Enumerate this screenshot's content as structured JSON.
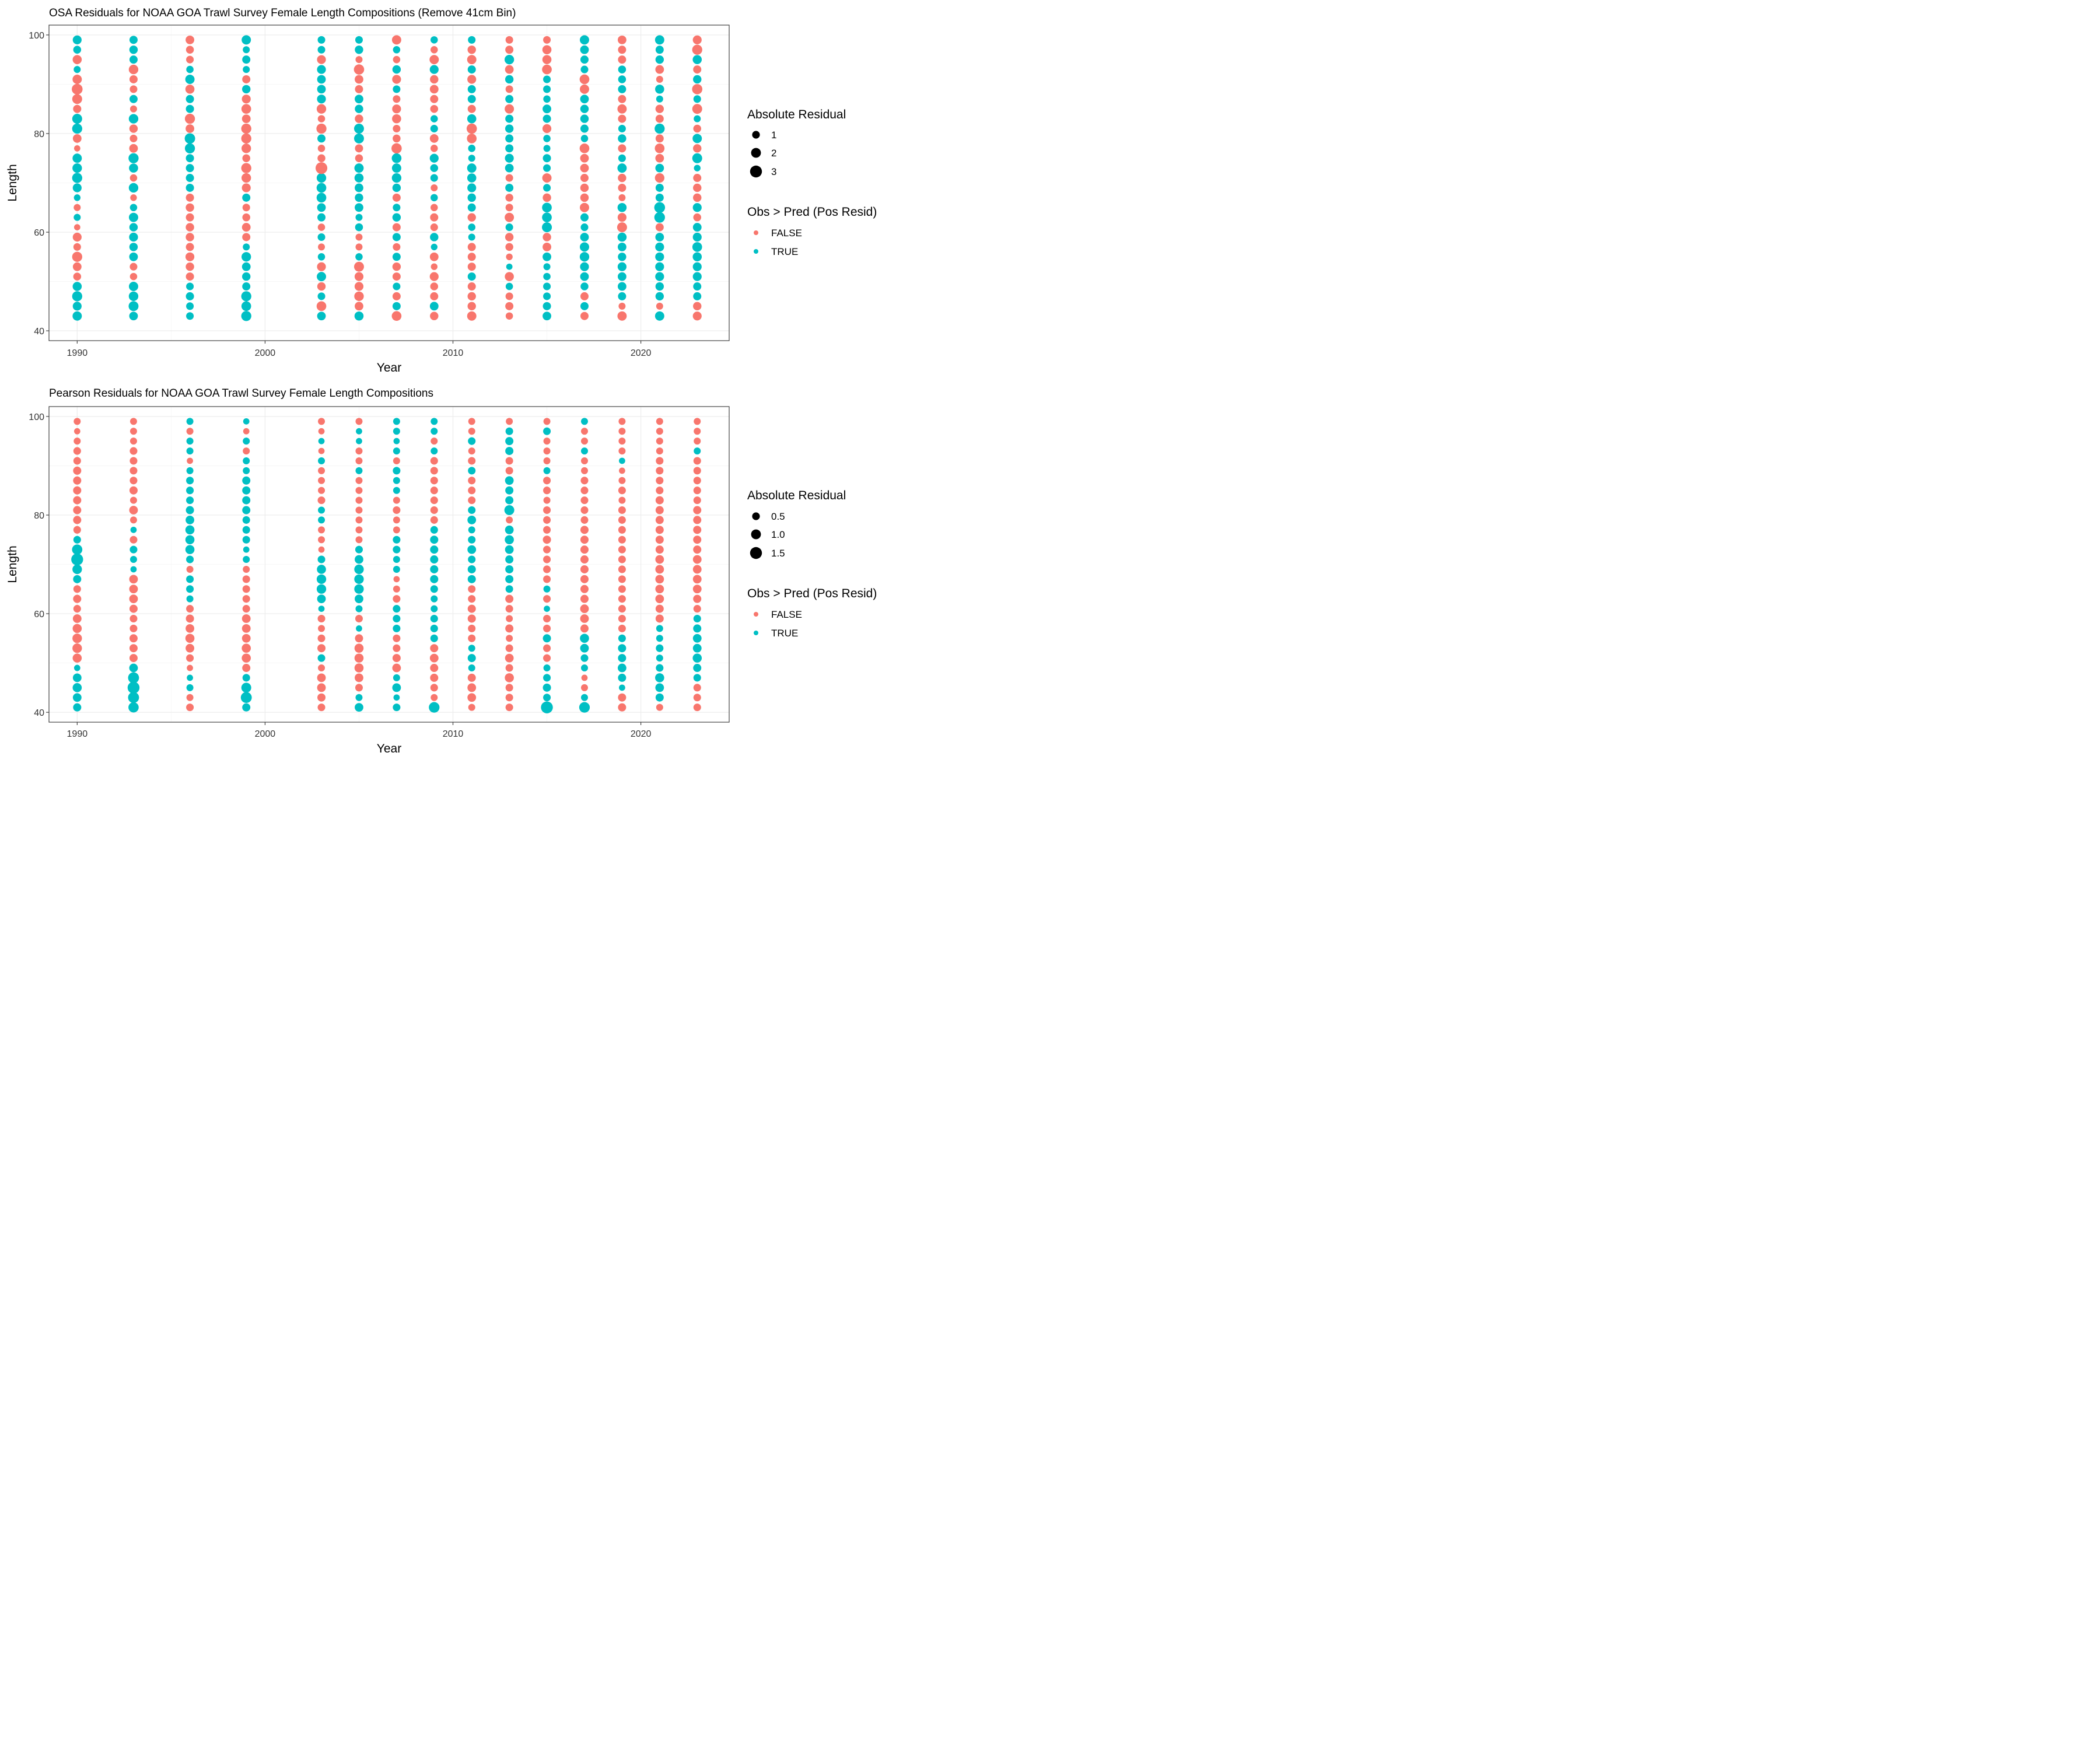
{
  "chart_data": [
    {
      "type": "scatter",
      "title": "OSA Residuals for NOAA GOA Trawl Survey Female Length Compositions (Remove 41cm Bin)",
      "xlabel": "Year",
      "ylabel": "Length",
      "xlim": [
        1988.5,
        2024.7
      ],
      "ylim": [
        38,
        102
      ],
      "x_ticks": [
        1990,
        2000,
        2010,
        2020
      ],
      "y_ticks": [
        40,
        60,
        80,
        100
      ],
      "grid": true,
      "legend_position": "right",
      "size_legend": {
        "title": "Absolute Residual",
        "values": [
          1,
          2,
          3
        ]
      },
      "color_legend": {
        "title": "Obs > Pred (Pos Resid)",
        "labels": [
          "FALSE",
          "TRUE"
        ]
      },
      "colors": {
        "FALSE": "#F8766D",
        "TRUE": "#00BFC4"
      },
      "years": [
        1990,
        1993,
        1996,
        1999,
        2003,
        2005,
        2007,
        2009,
        2011,
        2013,
        2015,
        2017,
        2019,
        2021,
        2023
      ],
      "lengths": [
        43,
        45,
        47,
        49,
        51,
        53,
        55,
        57,
        59,
        61,
        63,
        65,
        67,
        69,
        71,
        73,
        75,
        77,
        79,
        81,
        83,
        85,
        87,
        89,
        91,
        93,
        95,
        97,
        99
      ],
      "residuals": [
        [
          1.5,
          1.3,
          1.9,
          1.4,
          -0.9,
          -1.2,
          -1.9,
          -0.8,
          -1.3,
          -0.4,
          0.6,
          -0.6,
          0.5,
          1.3,
          1.9,
          1.6,
          1.5,
          -0.4,
          -1.2,
          1.9,
          1.8,
          -1.0,
          -1.8,
          -2.3,
          -1.5,
          0.6,
          -1.4,
          0.9,
          1.3
        ],
        [
          1.2,
          1.8,
          1.6,
          1.5,
          -0.7,
          -0.8,
          1.2,
          1.1,
          1.3,
          1.1,
          1.5,
          0.7,
          -0.5,
          1.6,
          -0.7,
          1.4,
          1.9,
          -1.2,
          -0.8,
          -1.1,
          1.6,
          -0.6,
          1.0,
          -0.8,
          -1.0,
          -1.6,
          1.0,
          1.1,
          1.0
        ],
        [
          0.8,
          0.8,
          1.0,
          0.8,
          -1.0,
          -1.1,
          -1.3,
          -1.0,
          -1.1,
          -1.1,
          -1.0,
          -1.1,
          -1.0,
          1.0,
          1.0,
          1.0,
          1.0,
          1.9,
          2.1,
          -1.2,
          -1.9,
          1.0,
          1.0,
          -1.4,
          1.5,
          0.7,
          -0.8,
          -0.9,
          -1.2
        ],
        [
          1.9,
          1.7,
          1.9,
          1.0,
          1.1,
          1.2,
          1.6,
          0.6,
          -1.0,
          -1.2,
          -0.9,
          -0.8,
          1.0,
          -1.3,
          -1.6,
          -1.9,
          -0.9,
          -1.6,
          -1.9,
          -1.9,
          -1.2,
          -1.7,
          -1.3,
          1.1,
          -1.0,
          0.6,
          1.0,
          0.6,
          1.5
        ],
        [
          1.2,
          -1.7,
          0.8,
          -1.1,
          1.5,
          -1.3,
          0.7,
          -0.6,
          0.8,
          -0.7,
          1.0,
          1.2,
          1.7,
          1.7,
          1.6,
          -2.9,
          -0.9,
          -0.7,
          1.0,
          -1.9,
          -0.7,
          -1.6,
          1.3,
          1.2,
          1.2,
          1.3,
          -1.3,
          0.8,
          0.8
        ],
        [
          1.4,
          -1.2,
          -1.6,
          -1.3,
          -1.3,
          -1.8,
          0.7,
          -0.6,
          -0.6,
          0.9,
          0.6,
          1.2,
          1.1,
          1.2,
          1.4,
          1.5,
          -0.9,
          -1.0,
          1.8,
          1.8,
          -1.1,
          1.1,
          1.2,
          -1.0,
          -1.2,
          -2.0,
          -0.6,
          1.1,
          0.8
        ],
        [
          -1.7,
          1.0,
          -1.0,
          0.8,
          -1.0,
          -1.1,
          1.0,
          -0.8,
          1.0,
          -1.0,
          1.1,
          0.8,
          -1.0,
          1.1,
          1.6,
          1.5,
          1.7,
          -2.0,
          -0.9,
          -0.8,
          -1.4,
          -1.3,
          -0.8,
          0.8,
          -1.3,
          1.1,
          -0.7,
          0.7,
          -1.5
        ],
        [
          -1.1,
          1.2,
          -1.0,
          -0.9,
          -1.3,
          -0.5,
          -1.2,
          0.5,
          1.1,
          -0.8,
          -1.0,
          -0.7,
          0.7,
          -0.6,
          0.8,
          0.9,
          1.3,
          -0.7,
          -1.2,
          0.8,
          0.7,
          -0.9,
          -1.0,
          -1.2,
          -1.1,
          1.3,
          -1.5,
          -0.7,
          0.7
        ],
        [
          -1.5,
          -1.1,
          -1.1,
          -1.0,
          1.0,
          -1.0,
          -1.0,
          -1.0,
          0.6,
          0.7,
          -1.1,
          1.0,
          1.1,
          1.3,
          1.4,
          1.5,
          0.6,
          0.7,
          -1.7,
          -2.0,
          1.4,
          -1.0,
          1.0,
          1.0,
          -1.3,
          1.0,
          -1.5,
          -1.1,
          0.8
        ],
        [
          -0.7,
          -1.0,
          -0.8,
          0.7,
          -1.4,
          0.4,
          -0.5,
          -0.9,
          -1.1,
          0.8,
          -1.5,
          -0.8,
          -0.9,
          1.0,
          -0.8,
          1.2,
          1.3,
          1.0,
          1.0,
          1.1,
          1.0,
          -1.5,
          1.0,
          -0.8,
          1.1,
          -1.2,
          1.6,
          -1.0,
          -0.8
        ],
        [
          1.2,
          1.0,
          0.8,
          0.8,
          0.7,
          0.6,
          1.2,
          -1.2,
          -1.1,
          1.8,
          1.7,
          1.7,
          -1.1,
          0.8,
          -1.5,
          0.8,
          1.0,
          0.6,
          0.7,
          -1.3,
          1.0,
          1.2,
          0.7,
          0.8,
          0.8,
          -1.7,
          -1.4,
          -1.4,
          -0.8
        ],
        [
          -1.0,
          1.0,
          -1.0,
          0.9,
          1.2,
          1.3,
          1.6,
          1.5,
          1.2,
          0.8,
          1.0,
          -1.5,
          -1.1,
          -1.1,
          -1.0,
          -1.2,
          -1.2,
          -1.7,
          0.7,
          1.0,
          1.1,
          1.1,
          1.2,
          -1.5,
          -1.7,
          0.8,
          1.0,
          1.2,
          1.5
        ],
        [
          -1.5,
          -0.6,
          1.0,
          1.2,
          1.2,
          1.3,
          1.1,
          1.2,
          1.4,
          -1.8,
          -1.3,
          1.4,
          -0.6,
          -1.0,
          -1.1,
          1.5,
          0.8,
          -1.0,
          1.1,
          0.8,
          -1.0,
          -1.5,
          -1.0,
          1.0,
          0.9,
          0.9,
          -1.0,
          -1.0,
          -1.2
        ],
        [
          1.5,
          -0.6,
          1.1,
          1.1,
          1.3,
          1.3,
          1.3,
          1.3,
          1.2,
          -1.0,
          2.2,
          2.3,
          1.0,
          1.0,
          -1.6,
          1.2,
          -1.2,
          -1.7,
          -1.0,
          1.9,
          -1.0,
          -1.1,
          0.6,
          1.4,
          -0.6,
          -1.2,
          1.1,
          1.0,
          1.5
        ],
        [
          -1.3,
          -1.1,
          1.0,
          1.0,
          1.3,
          1.3,
          1.4,
          1.7,
          1.3,
          1.2,
          -0.9,
          1.3,
          -1.1,
          -1.1,
          -1.0,
          0.5,
          1.8,
          -1.1,
          1.5,
          -0.9,
          0.6,
          -1.8,
          0.8,
          -2.0,
          1.1,
          -1.0,
          1.4,
          -1.9,
          -1.3
        ]
      ]
    },
    {
      "type": "scatter",
      "title": "Pearson Residuals for NOAA GOA Trawl Survey Female Length Compositions",
      "xlabel": "Year",
      "ylabel": "Length",
      "xlim": [
        1988.5,
        2024.7
      ],
      "ylim": [
        38,
        102
      ],
      "x_ticks": [
        1990,
        2000,
        2010,
        2020
      ],
      "y_ticks": [
        40,
        60,
        80,
        100
      ],
      "grid": true,
      "legend_position": "right",
      "size_legend": {
        "title": "Absolute Residual",
        "values": [
          "0.5",
          "1.0",
          "1.5"
        ]
      },
      "color_legend": {
        "title": "Obs > Pred (Pos Resid)",
        "labels": [
          "FALSE",
          "TRUE"
        ]
      },
      "colors": {
        "FALSE": "#F8766D",
        "TRUE": "#00BFC4"
      },
      "years": [
        1990,
        1993,
        1996,
        1999,
        2003,
        2005,
        2007,
        2009,
        2011,
        2013,
        2015,
        2017,
        2019,
        2021,
        2023
      ],
      "lengths": [
        41,
        43,
        45,
        47,
        49,
        51,
        53,
        55,
        57,
        59,
        61,
        63,
        65,
        67,
        69,
        71,
        73,
        75,
        77,
        79,
        81,
        83,
        85,
        87,
        89,
        91,
        93,
        95,
        97,
        99
      ],
      "residuals": [
        [
          0.5,
          0.6,
          0.7,
          0.6,
          0.2,
          -0.7,
          -0.8,
          -0.8,
          -0.7,
          -0.6,
          -0.4,
          -0.5,
          -0.4,
          0.5,
          0.8,
          1.5,
          1.0,
          0.4,
          -0.4,
          -0.5,
          -0.5,
          -0.5,
          -0.5,
          -0.5,
          -0.5,
          -0.4,
          -0.4,
          -0.3,
          -0.2,
          -0.3
        ],
        [
          1.0,
          1.2,
          1.6,
          1.2,
          0.6,
          -0.5,
          -0.5,
          -0.5,
          -0.4,
          -0.4,
          -0.5,
          -0.6,
          -0.6,
          -0.6,
          0.2,
          0.3,
          0.4,
          -0.4,
          0.2,
          -0.3,
          -0.6,
          -0.3,
          -0.5,
          -0.4,
          -0.4,
          -0.4,
          -0.4,
          -0.3,
          -0.3,
          -0.3
        ],
        [
          -0.4,
          -0.3,
          0.3,
          0.2,
          -0.2,
          -0.4,
          -0.6,
          -0.7,
          -0.6,
          -0.5,
          -0.4,
          0.3,
          0.4,
          0.4,
          -0.3,
          0.4,
          0.7,
          0.7,
          0.7,
          0.6,
          0.5,
          0.4,
          0.4,
          0.4,
          0.3,
          -0.2,
          0.3,
          0.3,
          -0.3,
          0.3
        ],
        [
          0.5,
          1.2,
          0.9,
          0.4,
          -0.5,
          -0.7,
          -0.7,
          -0.6,
          -0.6,
          -0.6,
          -0.4,
          -0.4,
          -0.4,
          -0.4,
          -0.3,
          0.3,
          0.2,
          0.4,
          0.4,
          0.4,
          0.5,
          0.5,
          0.5,
          0.5,
          0.3,
          0.3,
          -0.3,
          0.3,
          -0.2,
          0.2
        ],
        [
          -0.4,
          -0.5,
          -0.6,
          -0.6,
          -0.3,
          0.4,
          -0.5,
          -0.4,
          -0.3,
          -0.4,
          0.2,
          0.6,
          0.8,
          0.8,
          0.7,
          0.4,
          -0.2,
          -0.3,
          -0.3,
          0.3,
          0.3,
          -0.4,
          -0.3,
          -0.3,
          -0.3,
          0.3,
          -0.2,
          0.2,
          -0.2,
          -0.3
        ],
        [
          0.6,
          0.3,
          -0.4,
          -0.6,
          -0.7,
          -0.7,
          -0.7,
          -0.5,
          0.2,
          -0.4,
          0.3,
          0.6,
          0.8,
          0.8,
          0.8,
          0.6,
          0.4,
          -0.3,
          -0.3,
          -0.3,
          -0.3,
          -0.3,
          -0.3,
          -0.3,
          0.3,
          -0.3,
          -0.3,
          0.2,
          0.2,
          -0.3
        ],
        [
          0.4,
          0.2,
          0.6,
          0.3,
          -0.6,
          -0.5,
          -0.4,
          -0.4,
          0.4,
          0.4,
          0.4,
          -0.4,
          -0.3,
          -0.2,
          0.3,
          0.3,
          0.4,
          0.4,
          -0.3,
          -0.3,
          -0.4,
          -0.3,
          0.3,
          0.3,
          0.4,
          -0.3,
          0.3,
          0.2,
          0.3,
          0.3
        ],
        [
          1.1,
          -0.3,
          -0.4,
          -0.5,
          -0.5,
          -0.6,
          -0.5,
          0.4,
          0.4,
          0.4,
          0.3,
          0.3,
          0.4,
          0.5,
          0.5,
          0.5,
          0.5,
          0.5,
          0.4,
          -0.4,
          -0.4,
          -0.4,
          -0.4,
          -0.4,
          -0.4,
          -0.4,
          0.3,
          -0.3,
          0.3,
          0.3
        ],
        [
          -0.3,
          -0.6,
          -0.6,
          -0.5,
          0.3,
          0.5,
          0.3,
          -0.4,
          -0.4,
          -0.5,
          -0.5,
          -0.4,
          -0.4,
          0.5,
          0.5,
          0.4,
          0.6,
          0.4,
          0.3,
          0.6,
          0.4,
          -0.4,
          -0.4,
          -0.4,
          0.4,
          -0.4,
          -0.3,
          0.4,
          -0.3,
          -0.3
        ],
        [
          -0.4,
          -0.4,
          -0.4,
          -0.7,
          -0.4,
          -0.6,
          -0.4,
          -0.3,
          -0.5,
          -0.3,
          -0.4,
          -0.5,
          0.4,
          0.5,
          0.5,
          0.5,
          0.6,
          0.7,
          0.6,
          -0.3,
          0.9,
          0.5,
          0.5,
          0.6,
          -0.4,
          -0.4,
          0.5,
          0.5,
          0.4,
          -0.3
        ],
        [
          1.5,
          0.4,
          0.5,
          0.4,
          0.3,
          -0.4,
          -0.4,
          0.5,
          -0.4,
          -0.4,
          0.2,
          -0.4,
          0.3,
          -0.4,
          -0.4,
          -0.4,
          -0.4,
          -0.5,
          -0.4,
          -0.4,
          -0.4,
          -0.3,
          -0.4,
          -0.4,
          0.3,
          -0.3,
          -0.3,
          -0.3,
          0.4,
          -0.3
        ],
        [
          1.1,
          0.3,
          -0.3,
          -0.2,
          0.3,
          0.4,
          0.6,
          0.7,
          -0.5,
          -0.6,
          -0.6,
          -0.5,
          -0.5,
          -0.5,
          -0.5,
          -0.5,
          -0.5,
          -0.5,
          -0.5,
          -0.4,
          -0.4,
          -0.4,
          -0.4,
          -0.4,
          -0.3,
          -0.3,
          0.3,
          -0.3,
          -0.3,
          0.3
        ],
        [
          -0.5,
          -0.5,
          0.2,
          0.5,
          0.6,
          0.5,
          0.5,
          0.4,
          -0.4,
          -0.4,
          -0.4,
          -0.4,
          -0.4,
          -0.4,
          -0.4,
          -0.4,
          -0.4,
          -0.4,
          -0.4,
          -0.4,
          -0.4,
          -0.3,
          -0.4,
          -0.3,
          -0.2,
          0.2,
          -0.3,
          -0.3,
          -0.3,
          -0.3
        ],
        [
          -0.3,
          0.5,
          0.6,
          0.7,
          0.4,
          0.3,
          0.4,
          0.3,
          0.3,
          -0.5,
          -0.5,
          -0.6,
          -0.6,
          -0.6,
          -0.6,
          -0.6,
          -0.5,
          -0.5,
          -0.5,
          -0.5,
          -0.5,
          -0.5,
          -0.4,
          -0.4,
          -0.4,
          -0.4,
          -0.3,
          -0.3,
          -0.3,
          -0.3
        ],
        [
          -0.4,
          -0.4,
          -0.4,
          0.4,
          0.5,
          0.7,
          0.6,
          0.6,
          0.5,
          0.4,
          -0.4,
          -0.5,
          -0.6,
          -0.6,
          -0.6,
          -0.6,
          -0.5,
          -0.5,
          -0.5,
          -0.5,
          -0.5,
          -0.4,
          -0.4,
          -0.4,
          -0.4,
          -0.4,
          0.3,
          -0.3,
          -0.3,
          -0.3
        ]
      ]
    }
  ]
}
